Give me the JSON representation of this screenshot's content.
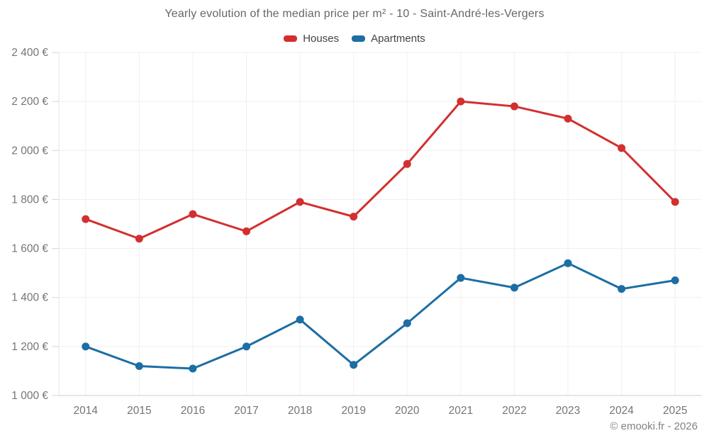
{
  "chart_data": {
    "type": "line",
    "title": "Yearly evolution of the median price per m² - 10 - Saint-André-les-Vergers",
    "categories": [
      "2014",
      "2015",
      "2016",
      "2017",
      "2018",
      "2019",
      "2020",
      "2021",
      "2022",
      "2023",
      "2024",
      "2025"
    ],
    "series": [
      {
        "name": "Houses",
        "color": "#d32f2f",
        "values": [
          1720,
          1640,
          1740,
          1670,
          1790,
          1730,
          1945,
          2200,
          2180,
          2130,
          2010,
          1790
        ]
      },
      {
        "name": "Apartments",
        "color": "#1c6ea4",
        "values": [
          1200,
          1120,
          1110,
          1200,
          1310,
          1125,
          1295,
          1480,
          1440,
          1540,
          1435,
          1470
        ]
      }
    ],
    "xlabel": "",
    "ylabel": "",
    "ylim": [
      1000,
      2400
    ],
    "ytick_step": 200,
    "ytick_labels": [
      "1 000 €",
      "1 200 €",
      "1 400 €",
      "1 600 €",
      "1 800 €",
      "2 000 €",
      "2 200 €",
      "2 400 €"
    ],
    "grid": true,
    "legend_position": "top",
    "colors": {
      "grid_line": "#f0f0f0",
      "axis_line": "#cccccc",
      "y_axis_line": "#e4e4e4",
      "tick_mark": "#d6d6d6",
      "tick_label": "#757575"
    }
  },
  "footer": {
    "credit": "© emooki.fr - 2026"
  }
}
